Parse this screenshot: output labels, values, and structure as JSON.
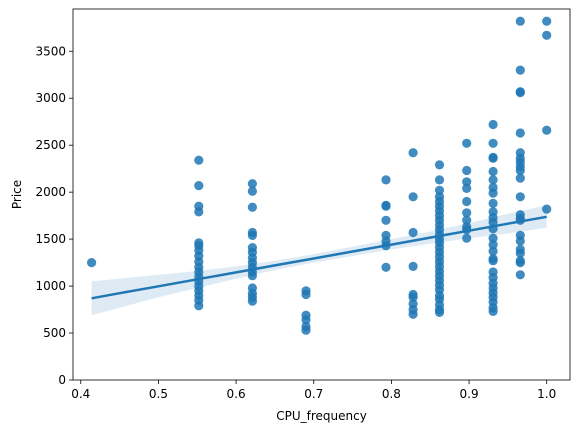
{
  "chart_data": {
    "type": "scatter",
    "title": "",
    "xlabel": "CPU_frequency",
    "ylabel": "Price",
    "xlim": [
      0.39,
      1.03
    ],
    "ylim": [
      0,
      3950
    ],
    "xticks": [
      0.4,
      0.5,
      0.6,
      0.7,
      0.8,
      0.9,
      1.0
    ],
    "xtick_labels": [
      "0.4",
      "0.5",
      "0.6",
      "0.7",
      "0.8",
      "0.9",
      "1.0"
    ],
    "yticks": [
      0,
      500,
      1000,
      1500,
      2000,
      2500,
      3000,
      3500
    ],
    "ytick_labels": [
      "0",
      "500",
      "1000",
      "1500",
      "2000",
      "2500",
      "3000",
      "3500"
    ],
    "grid": false,
    "colors": {
      "points": "#1f77b4",
      "line": "#1f77b4",
      "band": "#1f77b4"
    },
    "points": [
      [
        0.414,
        1250
      ],
      [
        0.552,
        2340
      ],
      [
        0.552,
        2070
      ],
      [
        0.552,
        1850
      ],
      [
        0.552,
        1790
      ],
      [
        0.552,
        1460
      ],
      [
        0.552,
        1430
      ],
      [
        0.552,
        1380
      ],
      [
        0.552,
        1320
      ],
      [
        0.552,
        1260
      ],
      [
        0.552,
        1200
      ],
      [
        0.552,
        1150
      ],
      [
        0.552,
        1100
      ],
      [
        0.552,
        1050
      ],
      [
        0.552,
        1000
      ],
      [
        0.552,
        950
      ],
      [
        0.552,
        900
      ],
      [
        0.552,
        850
      ],
      [
        0.552,
        790
      ],
      [
        0.621,
        2090
      ],
      [
        0.621,
        2010
      ],
      [
        0.621,
        1840
      ],
      [
        0.621,
        1570
      ],
      [
        0.621,
        1540
      ],
      [
        0.621,
        1410
      ],
      [
        0.621,
        1360
      ],
      [
        0.621,
        1300
      ],
      [
        0.621,
        1250
      ],
      [
        0.621,
        1200
      ],
      [
        0.621,
        1150
      ],
      [
        0.621,
        1110
      ],
      [
        0.621,
        980
      ],
      [
        0.621,
        920
      ],
      [
        0.621,
        880
      ],
      [
        0.621,
        840
      ],
      [
        0.69,
        950
      ],
      [
        0.69,
        910
      ],
      [
        0.69,
        690
      ],
      [
        0.69,
        640
      ],
      [
        0.69,
        570
      ],
      [
        0.69,
        530
      ],
      [
        0.793,
        2130
      ],
      [
        0.793,
        1860
      ],
      [
        0.793,
        1850
      ],
      [
        0.793,
        1700
      ],
      [
        0.793,
        1540
      ],
      [
        0.793,
        1480
      ],
      [
        0.793,
        1430
      ],
      [
        0.793,
        1200
      ],
      [
        0.828,
        2420
      ],
      [
        0.828,
        1950
      ],
      [
        0.828,
        1570
      ],
      [
        0.828,
        1210
      ],
      [
        0.828,
        910
      ],
      [
        0.828,
        880
      ],
      [
        0.828,
        810
      ],
      [
        0.828,
        750
      ],
      [
        0.828,
        700
      ],
      [
        0.862,
        2290
      ],
      [
        0.862,
        2130
      ],
      [
        0.862,
        2020
      ],
      [
        0.862,
        1950
      ],
      [
        0.862,
        1900
      ],
      [
        0.862,
        1850
      ],
      [
        0.862,
        1800
      ],
      [
        0.862,
        1750
      ],
      [
        0.862,
        1700
      ],
      [
        0.862,
        1650
      ],
      [
        0.862,
        1600
      ],
      [
        0.862,
        1550
      ],
      [
        0.862,
        1500
      ],
      [
        0.862,
        1460
      ],
      [
        0.862,
        1410
      ],
      [
        0.862,
        1360
      ],
      [
        0.862,
        1310
      ],
      [
        0.862,
        1260
      ],
      [
        0.862,
        1210
      ],
      [
        0.862,
        1160
      ],
      [
        0.862,
        1110
      ],
      [
        0.862,
        1060
      ],
      [
        0.862,
        1010
      ],
      [
        0.862,
        960
      ],
      [
        0.862,
        900
      ],
      [
        0.862,
        860
      ],
      [
        0.862,
        800
      ],
      [
        0.862,
        750
      ],
      [
        0.862,
        720
      ],
      [
        0.897,
        2520
      ],
      [
        0.897,
        2230
      ],
      [
        0.897,
        2110
      ],
      [
        0.897,
        2040
      ],
      [
        0.897,
        1900
      ],
      [
        0.897,
        1780
      ],
      [
        0.897,
        1700
      ],
      [
        0.897,
        1630
      ],
      [
        0.897,
        1600
      ],
      [
        0.897,
        1510
      ],
      [
        0.931,
        2720
      ],
      [
        0.931,
        2520
      ],
      [
        0.931,
        2370
      ],
      [
        0.931,
        2360
      ],
      [
        0.931,
        2220
      ],
      [
        0.931,
        2130
      ],
      [
        0.931,
        2050
      ],
      [
        0.931,
        1990
      ],
      [
        0.931,
        1880
      ],
      [
        0.931,
        1790
      ],
      [
        0.931,
        1730
      ],
      [
        0.931,
        1680
      ],
      [
        0.931,
        1610
      ],
      [
        0.931,
        1510
      ],
      [
        0.931,
        1440
      ],
      [
        0.931,
        1370
      ],
      [
        0.931,
        1290
      ],
      [
        0.931,
        1270
      ],
      [
        0.931,
        1150
      ],
      [
        0.931,
        1090
      ],
      [
        0.931,
        1030
      ],
      [
        0.931,
        980
      ],
      [
        0.931,
        930
      ],
      [
        0.931,
        880
      ],
      [
        0.931,
        830
      ],
      [
        0.931,
        770
      ],
      [
        0.931,
        730
      ],
      [
        0.966,
        3820
      ],
      [
        0.966,
        3300
      ],
      [
        0.966,
        3070
      ],
      [
        0.966,
        3060
      ],
      [
        0.966,
        2630
      ],
      [
        0.966,
        2420
      ],
      [
        0.966,
        2360
      ],
      [
        0.966,
        2320
      ],
      [
        0.966,
        2270
      ],
      [
        0.966,
        2230
      ],
      [
        0.966,
        2150
      ],
      [
        0.966,
        1950
      ],
      [
        0.966,
        1760
      ],
      [
        0.966,
        1720
      ],
      [
        0.966,
        1700
      ],
      [
        0.966,
        1540
      ],
      [
        0.966,
        1480
      ],
      [
        0.966,
        1390
      ],
      [
        0.966,
        1350
      ],
      [
        0.966,
        1270
      ],
      [
        0.966,
        1250
      ],
      [
        0.966,
        1120
      ],
      [
        1.0,
        3820
      ],
      [
        1.0,
        3670
      ],
      [
        1.0,
        2660
      ],
      [
        1.0,
        1820
      ]
    ],
    "regression": {
      "x": [
        0.414,
        0.45,
        0.5,
        0.55,
        0.6,
        0.65,
        0.7,
        0.75,
        0.8,
        0.85,
        0.9,
        0.95,
        1.0
      ],
      "y": [
        870,
        924,
        998,
        1072,
        1146,
        1220,
        1294,
        1368,
        1442,
        1516,
        1590,
        1664,
        1738
      ],
      "ci_lower": [
        690,
        770,
        880,
        980,
        1080,
        1170,
        1250,
        1320,
        1390,
        1450,
        1510,
        1560,
        1620
      ],
      "ci_upper": [
        1050,
        1080,
        1120,
        1160,
        1210,
        1270,
        1340,
        1420,
        1500,
        1580,
        1670,
        1770,
        1860
      ]
    }
  }
}
